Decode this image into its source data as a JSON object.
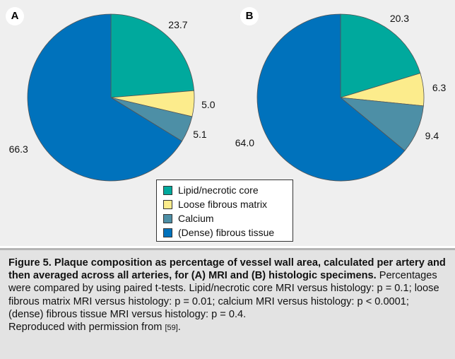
{
  "panels": [
    "A",
    "B"
  ],
  "colors": {
    "lipid": "#00a99d",
    "loose": "#fcec8c",
    "calcium": "#4d8fa6",
    "fibrous": "#0072bc",
    "background": "#efefef",
    "caption_bg": "#e3e3e3"
  },
  "legend": [
    {
      "label": "Lipid/necrotic core",
      "color_key": "lipid"
    },
    {
      "label": "Loose fibrous matrix",
      "color_key": "loose"
    },
    {
      "label": "Calcium",
      "color_key": "calcium"
    },
    {
      "label": "(Dense) fibrous tissue",
      "color_key": "fibrous"
    }
  ],
  "chart_data": [
    {
      "type": "pie",
      "title": "A",
      "categories": [
        "Lipid/necrotic core",
        "Loose fibrous matrix",
        "Calcium",
        "(Dense) fibrous tissue"
      ],
      "values": [
        23.7,
        5.0,
        5.1,
        66.3
      ],
      "value_labels": [
        "23.7",
        "5.0",
        "5.1",
        "66.3"
      ]
    },
    {
      "type": "pie",
      "title": "B",
      "categories": [
        "Lipid/necrotic core",
        "Loose fibrous matrix",
        "Calcium",
        "(Dense) fibrous tissue"
      ],
      "values": [
        20.3,
        6.3,
        9.4,
        64.0
      ],
      "value_labels": [
        "20.3",
        "6.3",
        "9.4",
        "64.0"
      ]
    }
  ],
  "caption": {
    "bold": "Figure 5. Plaque composition as percentage of vessel wall area, calculated per artery and then averaged across all arteries, for (A) MRI and (B) histologic specimens.",
    "body": " Percentages were compared by using paired t-tests. Lipid/necrotic core MRI versus histology: p = 0.1; loose fibrous matrix MRI versus histology: p = 0.01; calcium MRI versus histology: p < 0.0001; (dense) fibrous tissue MRI versus histology: p = 0.4.",
    "repro_text": "Reproduced with permission from ",
    "repro_cite": "[59]",
    "repro_end": "."
  }
}
